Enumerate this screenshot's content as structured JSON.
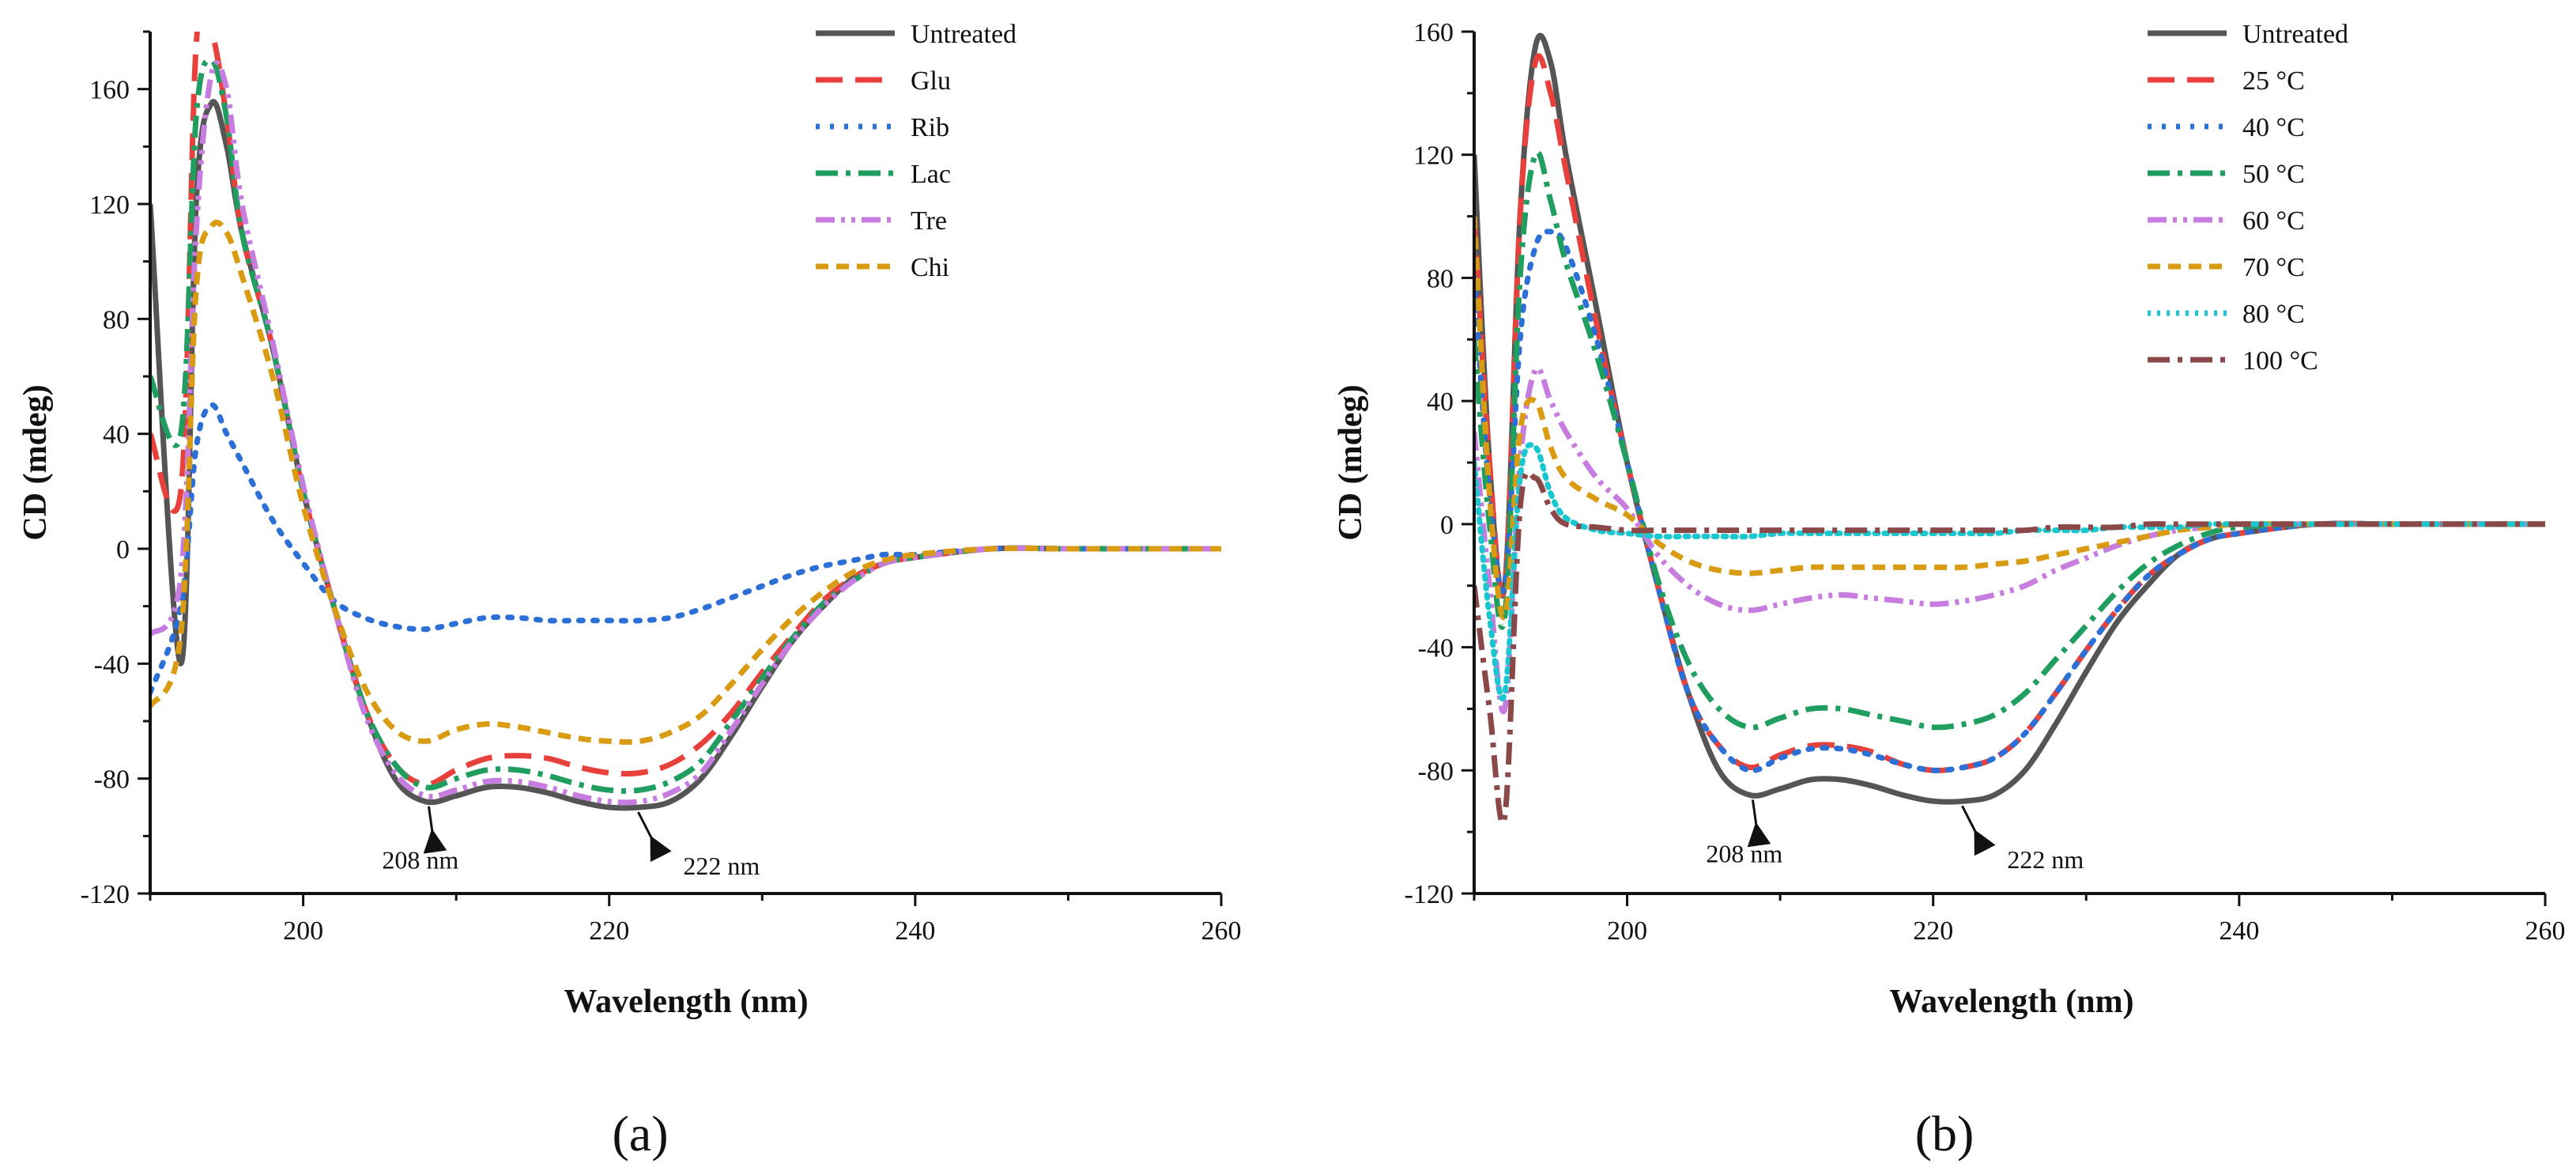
{
  "chart_data": [
    {
      "panel_label": "(a)",
      "type": "line",
      "xlabel": "Wavelength (nm)",
      "ylabel": "CD (mdeg)",
      "xlim": [
        190,
        260
      ],
      "ylim": [
        -120,
        180
      ],
      "xticks": [
        "200",
        "220",
        "240",
        "260"
      ],
      "yticks": [
        "-120",
        "-80",
        "-40",
        "0",
        "40",
        "80",
        "120",
        "160"
      ],
      "annotations": [
        {
          "text": "208 nm",
          "at": [
            208,
            -88
          ]
        },
        {
          "text": "222 nm",
          "at": [
            222,
            -90
          ]
        }
      ],
      "series": [
        {
          "name": "Untreated",
          "color": "#555555",
          "dash": "solid",
          "x": [
            190,
            192,
            193,
            194,
            195,
            196,
            198,
            200,
            202,
            204,
            206,
            208,
            210,
            212,
            214,
            216,
            218,
            220,
            222,
            224,
            226,
            228,
            230,
            232,
            234,
            236,
            238,
            240,
            245,
            250,
            255,
            260
          ],
          "y": [
            120,
            -40,
            120,
            155,
            140,
            110,
            70,
            20,
            -20,
            -55,
            -80,
            -88,
            -86,
            -83,
            -83,
            -85,
            -88,
            -90,
            -90,
            -88,
            -80,
            -65,
            -48,
            -32,
            -20,
            -10,
            -5,
            -3,
            0,
            0,
            0,
            0
          ]
        },
        {
          "name": "Glu",
          "color": "#e8413c",
          "dash": "long",
          "x": [
            190,
            192,
            193,
            194,
            195,
            196,
            198,
            200,
            202,
            204,
            206,
            208,
            210,
            212,
            214,
            216,
            218,
            220,
            222,
            224,
            226,
            228,
            230,
            232,
            234,
            236,
            238,
            240,
            245,
            250,
            255,
            260
          ],
          "y": [
            40,
            20,
            175,
            180,
            150,
            110,
            70,
            20,
            -20,
            -55,
            -75,
            -82,
            -77,
            -73,
            -72,
            -73,
            -76,
            -78,
            -78,
            -75,
            -68,
            -57,
            -43,
            -30,
            -18,
            -10,
            -5,
            -3,
            0,
            0,
            0,
            0
          ]
        },
        {
          "name": "Rib",
          "color": "#2c6fd6",
          "dash": "dot",
          "x": [
            190,
            192,
            193,
            194,
            195,
            196,
            198,
            200,
            202,
            204,
            206,
            208,
            210,
            212,
            214,
            216,
            218,
            220,
            222,
            224,
            226,
            228,
            230,
            232,
            234,
            236,
            238,
            240,
            245,
            250,
            255,
            260
          ],
          "y": [
            -50,
            -20,
            35,
            50,
            40,
            30,
            10,
            -5,
            -18,
            -24,
            -27,
            -28,
            -26,
            -24,
            -24,
            -25,
            -25,
            -25,
            -25,
            -24,
            -21,
            -17,
            -13,
            -9,
            -6,
            -4,
            -2,
            -2,
            0,
            0,
            0,
            0
          ]
        },
        {
          "name": "Lac",
          "color": "#1f9e60",
          "dash": "dashdot",
          "x": [
            190,
            192,
            193,
            194,
            195,
            196,
            198,
            200,
            202,
            204,
            206,
            208,
            210,
            212,
            214,
            216,
            218,
            220,
            222,
            224,
            226,
            228,
            230,
            232,
            234,
            236,
            238,
            240,
            245,
            250,
            255,
            260
          ],
          "y": [
            60,
            40,
            150,
            170,
            150,
            110,
            70,
            20,
            -20,
            -55,
            -75,
            -83,
            -80,
            -77,
            -77,
            -79,
            -82,
            -84,
            -84,
            -81,
            -74,
            -60,
            -45,
            -31,
            -19,
            -11,
            -5,
            -3,
            0,
            0,
            0,
            0
          ]
        },
        {
          "name": "Tre",
          "color": "#c77de0",
          "dash": "dashdotdot",
          "x": [
            190,
            192,
            193,
            194,
            195,
            196,
            198,
            200,
            202,
            204,
            206,
            208,
            210,
            212,
            214,
            216,
            218,
            220,
            222,
            224,
            226,
            228,
            230,
            232,
            234,
            236,
            238,
            240,
            245,
            250,
            255,
            260
          ],
          "y": [
            -30,
            -10,
            110,
            165,
            160,
            120,
            72,
            22,
            -20,
            -57,
            -78,
            -86,
            -84,
            -81,
            -81,
            -83,
            -86,
            -88,
            -88,
            -85,
            -78,
            -63,
            -47,
            -32,
            -20,
            -11,
            -5,
            -3,
            0,
            0,
            0,
            0
          ]
        },
        {
          "name": "Chi",
          "color": "#d99b12",
          "dash": "short",
          "x": [
            190,
            192,
            193,
            194,
            195,
            196,
            198,
            200,
            202,
            204,
            206,
            208,
            210,
            212,
            214,
            216,
            218,
            220,
            222,
            224,
            226,
            228,
            230,
            232,
            234,
            236,
            238,
            240,
            245,
            250,
            255,
            260
          ],
          "y": [
            -55,
            -30,
            90,
            112,
            110,
            95,
            60,
            15,
            -20,
            -48,
            -63,
            -67,
            -63,
            -61,
            -62,
            -64,
            -66,
            -67,
            -67,
            -64,
            -58,
            -47,
            -35,
            -24,
            -15,
            -8,
            -4,
            -2,
            0,
            0,
            0,
            0
          ]
        }
      ]
    },
    {
      "panel_label": "(b)",
      "type": "line",
      "xlabel": "Wavelength (nm)",
      "ylabel": "CD (mdeg)",
      "xlim": [
        190,
        260
      ],
      "ylim": [
        -120,
        160
      ],
      "xticks": [
        "200",
        "220",
        "240",
        "260"
      ],
      "yticks": [
        "-120",
        "-80",
        "-40",
        "0",
        "40",
        "80",
        "120",
        "160"
      ],
      "annotations": [
        {
          "text": "208 nm",
          "at": [
            208,
            -88
          ]
        },
        {
          "text": "222 nm",
          "at": [
            222,
            -90
          ]
        }
      ],
      "series": [
        {
          "name": "Untreated",
          "color": "#555555",
          "dash": "solid",
          "x": [
            190,
            191,
            192,
            193,
            194,
            195,
            196,
            198,
            200,
            202,
            204,
            206,
            208,
            210,
            212,
            214,
            216,
            218,
            220,
            222,
            224,
            226,
            228,
            230,
            232,
            234,
            236,
            238,
            240,
            245,
            250,
            255,
            260
          ],
          "y": [
            120,
            20,
            -20,
            100,
            155,
            150,
            120,
            70,
            20,
            -20,
            -55,
            -80,
            -88,
            -86,
            -83,
            -83,
            -85,
            -88,
            -90,
            -90,
            -88,
            -80,
            -65,
            -48,
            -32,
            -20,
            -10,
            -5,
            -3,
            0,
            0,
            0,
            0
          ]
        },
        {
          "name": "25 °C",
          "color": "#e8413c",
          "dash": "long",
          "x": [
            190,
            191,
            192,
            193,
            194,
            195,
            196,
            198,
            200,
            202,
            204,
            206,
            208,
            210,
            212,
            214,
            216,
            218,
            220,
            222,
            224,
            226,
            228,
            230,
            232,
            234,
            236,
            238,
            240,
            245,
            250,
            255,
            260
          ],
          "y": [
            100,
            20,
            -20,
            100,
            150,
            140,
            115,
            65,
            20,
            -20,
            -55,
            -72,
            -79,
            -75,
            -72,
            -72,
            -74,
            -78,
            -80,
            -79,
            -76,
            -68,
            -55,
            -41,
            -28,
            -17,
            -10,
            -5,
            -3,
            0,
            0,
            0,
            0
          ]
        },
        {
          "name": "40 °C",
          "color": "#2c6fd6",
          "dash": "dot",
          "x": [
            190,
            191,
            192,
            193,
            194,
            195,
            196,
            198,
            200,
            202,
            204,
            206,
            208,
            210,
            212,
            214,
            216,
            218,
            220,
            222,
            224,
            226,
            228,
            230,
            232,
            234,
            236,
            238,
            240,
            245,
            250,
            255,
            260
          ],
          "y": [
            80,
            10,
            -20,
            60,
            90,
            95,
            90,
            60,
            20,
            -20,
            -55,
            -72,
            -80,
            -76,
            -73,
            -73,
            -75,
            -78,
            -80,
            -79,
            -76,
            -68,
            -55,
            -41,
            -28,
            -17,
            -10,
            -5,
            -3,
            0,
            0,
            0,
            0
          ]
        },
        {
          "name": "50 °C",
          "color": "#1f9e60",
          "dash": "dashdot",
          "x": [
            190,
            191,
            192,
            193,
            194,
            195,
            196,
            198,
            200,
            202,
            204,
            206,
            208,
            210,
            212,
            214,
            216,
            218,
            220,
            222,
            224,
            226,
            228,
            230,
            232,
            234,
            236,
            238,
            240,
            245,
            250,
            255,
            260
          ],
          "y": [
            60,
            0,
            -30,
            80,
            120,
            105,
            85,
            55,
            20,
            -18,
            -45,
            -60,
            -66,
            -63,
            -60,
            -60,
            -62,
            -64,
            -66,
            -65,
            -62,
            -55,
            -44,
            -33,
            -22,
            -13,
            -7,
            -3,
            -1,
            0,
            0,
            0,
            0
          ]
        },
        {
          "name": "60 °C",
          "color": "#c77de0",
          "dash": "dashdotdot",
          "x": [
            190,
            191,
            192,
            193,
            194,
            195,
            196,
            198,
            200,
            202,
            204,
            206,
            208,
            210,
            212,
            214,
            216,
            218,
            220,
            222,
            224,
            226,
            228,
            230,
            232,
            234,
            236,
            238,
            240,
            245,
            250,
            255,
            260
          ],
          "y": [
            30,
            -20,
            -60,
            20,
            50,
            40,
            30,
            15,
            5,
            -10,
            -20,
            -26,
            -28,
            -26,
            -24,
            -23,
            -24,
            -25,
            -26,
            -25,
            -23,
            -20,
            -15,
            -11,
            -7,
            -4,
            -2,
            -1,
            0,
            0,
            0,
            0,
            0
          ]
        },
        {
          "name": "70 °C",
          "color": "#d99b12",
          "dash": "short",
          "x": [
            190,
            191,
            192,
            193,
            194,
            195,
            196,
            198,
            200,
            202,
            204,
            206,
            208,
            210,
            212,
            214,
            216,
            218,
            220,
            222,
            224,
            226,
            228,
            230,
            232,
            234,
            236,
            238,
            240,
            245,
            250,
            255,
            260
          ],
          "y": [
            100,
            10,
            -30,
            30,
            40,
            25,
            15,
            8,
            3,
            -6,
            -12,
            -15,
            -16,
            -15,
            -14,
            -14,
            -14,
            -14,
            -14,
            -14,
            -13,
            -12,
            -10,
            -8,
            -6,
            -4,
            -2,
            -1,
            0,
            0,
            0,
            0,
            0
          ]
        },
        {
          "name": "80 °C",
          "color": "#18c7cf",
          "dash": "fineDot",
          "x": [
            190,
            191,
            192,
            193,
            194,
            195,
            196,
            198,
            200,
            202,
            204,
            206,
            208,
            210,
            212,
            214,
            216,
            218,
            220,
            222,
            224,
            226,
            228,
            230,
            232,
            234,
            236,
            238,
            240,
            245,
            250,
            255,
            260
          ],
          "y": [
            20,
            -30,
            -55,
            15,
            25,
            10,
            2,
            -2,
            -3,
            -4,
            -4,
            -4,
            -4,
            -3,
            -3,
            -3,
            -3,
            -3,
            -3,
            -3,
            -3,
            -2,
            -2,
            -2,
            -1,
            -1,
            -1,
            0,
            0,
            0,
            0,
            0,
            0
          ]
        },
        {
          "name": "100 °C",
          "color": "#8b4848",
          "dash": "dashdot",
          "x": [
            190,
            191,
            192,
            193,
            194,
            195,
            196,
            198,
            200,
            202,
            204,
            206,
            208,
            210,
            212,
            214,
            216,
            218,
            220,
            222,
            224,
            226,
            228,
            230,
            232,
            234,
            236,
            238,
            240,
            245,
            250,
            255,
            260
          ],
          "y": [
            -20,
            -60,
            -95,
            5,
            15,
            5,
            0,
            -1,
            -2,
            -2,
            -2,
            -2,
            -2,
            -2,
            -2,
            -2,
            -2,
            -2,
            -2,
            -2,
            -2,
            -2,
            -1,
            -1,
            -1,
            0,
            0,
            0,
            0,
            0,
            0,
            0,
            0
          ]
        }
      ]
    }
  ]
}
